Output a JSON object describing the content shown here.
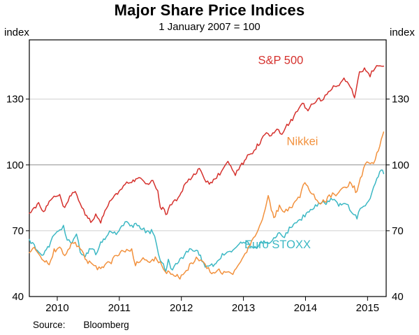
{
  "chart_data": {
    "type": "line",
    "title": "Major Share Price Indices",
    "subtitle": "1 January 2007 = 100",
    "unit_label": "index",
    "xlim": [
      2009.55,
      2015.3
    ],
    "ylim": [
      40,
      157
    ],
    "yticks": [
      40,
      70,
      100,
      130
    ],
    "xticks": [
      2010,
      2011,
      2012,
      2013,
      2014,
      2015
    ],
    "gridlines": [
      70,
      100,
      130
    ],
    "baseline": 100,
    "grid_on": true,
    "legend_position": "inline-annotations",
    "series": [
      {
        "id": "eurostoxx",
        "name": "Euro STOXX",
        "color": "#3cb8c4",
        "noise": 1.0,
        "label_pos": {
          "x": 2013.55,
          "y": 62
        },
        "points": [
          [
            2009.55,
            66
          ],
          [
            2009.63,
            63
          ],
          [
            2009.7,
            60
          ],
          [
            2009.78,
            59
          ],
          [
            2009.87,
            63
          ],
          [
            2009.95,
            68
          ],
          [
            2010.04,
            71
          ],
          [
            2010.1,
            72
          ],
          [
            2010.16,
            66
          ],
          [
            2010.24,
            64
          ],
          [
            2010.31,
            68
          ],
          [
            2010.37,
            61
          ],
          [
            2010.45,
            58
          ],
          [
            2010.54,
            62
          ],
          [
            2010.62,
            60
          ],
          [
            2010.7,
            64
          ],
          [
            2010.79,
            67
          ],
          [
            2010.87,
            70
          ],
          [
            2010.95,
            69
          ],
          [
            2011.04,
            72
          ],
          [
            2011.12,
            74
          ],
          [
            2011.2,
            72
          ],
          [
            2011.29,
            73
          ],
          [
            2011.37,
            71
          ],
          [
            2011.45,
            69
          ],
          [
            2011.54,
            70
          ],
          [
            2011.6,
            64
          ],
          [
            2011.66,
            56
          ],
          [
            2011.71,
            54
          ],
          [
            2011.75,
            52
          ],
          [
            2011.79,
            57
          ],
          [
            2011.83,
            52
          ],
          [
            2011.91,
            55
          ],
          [
            2012.0,
            57
          ],
          [
            2012.08,
            60
          ],
          [
            2012.16,
            62
          ],
          [
            2012.24,
            61
          ],
          [
            2012.33,
            57
          ],
          [
            2012.41,
            53
          ],
          [
            2012.49,
            54
          ],
          [
            2012.58,
            56
          ],
          [
            2012.66,
            59
          ],
          [
            2012.74,
            61
          ],
          [
            2012.83,
            61
          ],
          [
            2012.91,
            63
          ],
          [
            2013.0,
            65
          ],
          [
            2013.08,
            64
          ],
          [
            2013.16,
            62
          ],
          [
            2013.24,
            63
          ],
          [
            2013.33,
            66
          ],
          [
            2013.41,
            64
          ],
          [
            2013.49,
            67
          ],
          [
            2013.58,
            69
          ],
          [
            2013.66,
            67
          ],
          [
            2013.74,
            71
          ],
          [
            2013.83,
            73
          ],
          [
            2013.91,
            75
          ],
          [
            2013.99,
            77
          ],
          [
            2014.08,
            80
          ],
          [
            2014.16,
            81
          ],
          [
            2014.24,
            83
          ],
          [
            2014.33,
            82
          ],
          [
            2014.41,
            84
          ],
          [
            2014.49,
            83
          ],
          [
            2014.58,
            81
          ],
          [
            2014.66,
            82
          ],
          [
            2014.74,
            79
          ],
          [
            2014.83,
            76
          ],
          [
            2014.91,
            81
          ],
          [
            2014.99,
            83
          ],
          [
            2015.07,
            87
          ],
          [
            2015.15,
            93
          ],
          [
            2015.22,
            98
          ],
          [
            2015.26,
            96
          ]
        ]
      },
      {
        "id": "nikkei",
        "name": "Nikkei",
        "color": "#f2913d",
        "noise": 1.1,
        "label_pos": {
          "x": 2013.95,
          "y": 109
        },
        "points": [
          [
            2009.55,
            60
          ],
          [
            2009.63,
            62
          ],
          [
            2009.7,
            60
          ],
          [
            2009.78,
            57
          ],
          [
            2009.87,
            55
          ],
          [
            2009.95,
            61
          ],
          [
            2010.04,
            62
          ],
          [
            2010.12,
            59
          ],
          [
            2010.2,
            63
          ],
          [
            2010.29,
            64
          ],
          [
            2010.37,
            62
          ],
          [
            2010.45,
            57
          ],
          [
            2010.54,
            55
          ],
          [
            2010.62,
            53
          ],
          [
            2010.7,
            53
          ],
          [
            2010.79,
            55
          ],
          [
            2010.87,
            56
          ],
          [
            2010.95,
            59
          ],
          [
            2011.04,
            60
          ],
          [
            2011.12,
            62
          ],
          [
            2011.2,
            61
          ],
          [
            2011.26,
            55
          ],
          [
            2011.33,
            56
          ],
          [
            2011.41,
            57
          ],
          [
            2011.49,
            56
          ],
          [
            2011.58,
            57
          ],
          [
            2011.66,
            55
          ],
          [
            2011.74,
            52
          ],
          [
            2011.83,
            50
          ],
          [
            2011.91,
            49
          ],
          [
            2012.0,
            49
          ],
          [
            2012.08,
            52
          ],
          [
            2012.16,
            55
          ],
          [
            2012.24,
            58
          ],
          [
            2012.33,
            56
          ],
          [
            2012.41,
            53
          ],
          [
            2012.49,
            51
          ],
          [
            2012.58,
            52
          ],
          [
            2012.66,
            51
          ],
          [
            2012.74,
            52
          ],
          [
            2012.83,
            51
          ],
          [
            2012.91,
            53
          ],
          [
            2013.0,
            58
          ],
          [
            2013.08,
            62
          ],
          [
            2013.16,
            66
          ],
          [
            2013.24,
            71
          ],
          [
            2013.33,
            78
          ],
          [
            2013.4,
            86
          ],
          [
            2013.45,
            79
          ],
          [
            2013.49,
            76
          ],
          [
            2013.58,
            81
          ],
          [
            2013.66,
            79
          ],
          [
            2013.74,
            80
          ],
          [
            2013.83,
            83
          ],
          [
            2013.91,
            86
          ],
          [
            2013.99,
            92
          ],
          [
            2014.08,
            88
          ],
          [
            2014.16,
            85
          ],
          [
            2014.24,
            83
          ],
          [
            2014.33,
            84
          ],
          [
            2014.41,
            86
          ],
          [
            2014.49,
            87
          ],
          [
            2014.58,
            88
          ],
          [
            2014.66,
            90
          ],
          [
            2014.74,
            92
          ],
          [
            2014.83,
            87
          ],
          [
            2014.91,
            96
          ],
          [
            2014.99,
            101
          ],
          [
            2015.07,
            100
          ],
          [
            2015.15,
            105
          ],
          [
            2015.22,
            111
          ],
          [
            2015.26,
            115
          ]
        ]
      },
      {
        "id": "sp500",
        "name": "S&P 500",
        "color": "#d5312d",
        "noise": 0.9,
        "label_pos": {
          "x": 2013.6,
          "y": 146
        },
        "points": [
          [
            2009.55,
            78
          ],
          [
            2009.63,
            80
          ],
          [
            2009.7,
            82
          ],
          [
            2009.78,
            79
          ],
          [
            2009.87,
            83
          ],
          [
            2009.95,
            85
          ],
          [
            2010.04,
            86
          ],
          [
            2010.12,
            80
          ],
          [
            2010.2,
            85
          ],
          [
            2010.29,
            88
          ],
          [
            2010.37,
            83
          ],
          [
            2010.45,
            77
          ],
          [
            2010.54,
            74
          ],
          [
            2010.62,
            77
          ],
          [
            2010.7,
            74
          ],
          [
            2010.79,
            80
          ],
          [
            2010.87,
            84
          ],
          [
            2010.95,
            87
          ],
          [
            2011.04,
            89
          ],
          [
            2011.12,
            92
          ],
          [
            2011.2,
            92
          ],
          [
            2011.29,
            94
          ],
          [
            2011.37,
            93
          ],
          [
            2011.45,
            91
          ],
          [
            2011.54,
            93
          ],
          [
            2011.62,
            88
          ],
          [
            2011.66,
            80
          ],
          [
            2011.7,
            81
          ],
          [
            2011.75,
            77
          ],
          [
            2011.79,
            80
          ],
          [
            2011.87,
            83
          ],
          [
            2011.95,
            85
          ],
          [
            2012.04,
            90
          ],
          [
            2012.12,
            93
          ],
          [
            2012.2,
            96
          ],
          [
            2012.29,
            98
          ],
          [
            2012.37,
            94
          ],
          [
            2012.45,
            91
          ],
          [
            2012.54,
            94
          ],
          [
            2012.62,
            96
          ],
          [
            2012.7,
            99
          ],
          [
            2012.75,
            101
          ],
          [
            2012.87,
            96
          ],
          [
            2012.95,
            99
          ],
          [
            2013.04,
            103
          ],
          [
            2013.12,
            105
          ],
          [
            2013.2,
            108
          ],
          [
            2013.29,
            111
          ],
          [
            2013.37,
            115
          ],
          [
            2013.45,
            113
          ],
          [
            2013.54,
            117
          ],
          [
            2013.62,
            114
          ],
          [
            2013.7,
            118
          ],
          [
            2013.79,
            121
          ],
          [
            2013.87,
            125
          ],
          [
            2013.95,
            128
          ],
          [
            2014.04,
            125
          ],
          [
            2014.12,
            128
          ],
          [
            2014.2,
            130
          ],
          [
            2014.29,
            130
          ],
          [
            2014.37,
            133
          ],
          [
            2014.45,
            136
          ],
          [
            2014.54,
            137
          ],
          [
            2014.62,
            139
          ],
          [
            2014.7,
            137
          ],
          [
            2014.79,
            131
          ],
          [
            2014.87,
            142
          ],
          [
            2014.95,
            144
          ],
          [
            2015.04,
            141
          ],
          [
            2015.12,
            144
          ],
          [
            2015.2,
            146
          ],
          [
            2015.26,
            145
          ]
        ]
      }
    ],
    "source": {
      "label": "Source:",
      "value": "Bloomberg"
    }
  }
}
